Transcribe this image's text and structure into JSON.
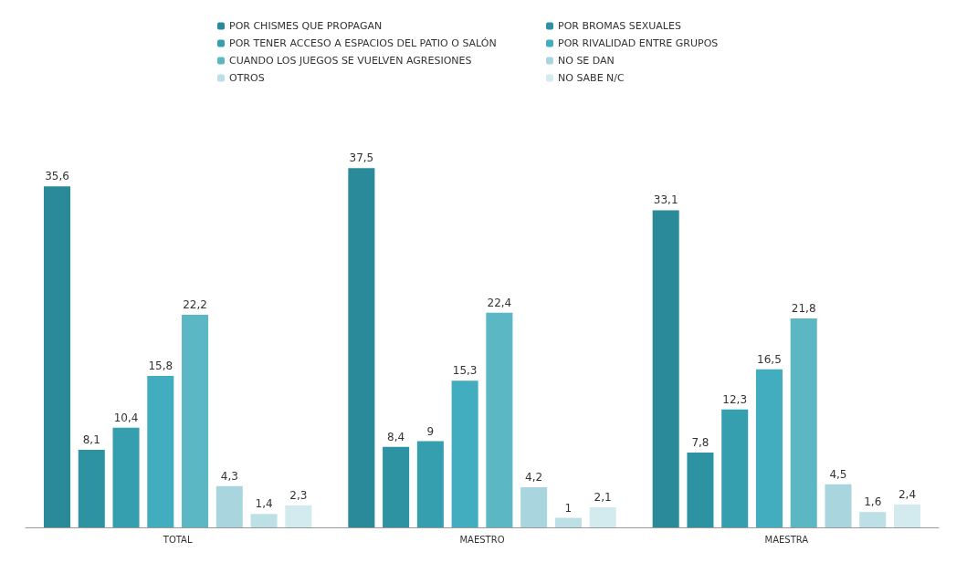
{
  "chart_data": {
    "type": "bar",
    "categories": [
      "TOTAL",
      "MAESTRO",
      "MAESTRA"
    ],
    "tick_labels": "x",
    "legend": "top",
    "series": [
      {
        "name": "POR CHISMES QUE PROPAGAN",
        "color": "#2a8a9a",
        "values": [
          35.6,
          37.5,
          33.1
        ],
        "value_labels": [
          "35,6",
          "37,5",
          "33,1"
        ]
      },
      {
        "name": "POR BROMAS SEXUALES",
        "color": "#2d93a3",
        "values": [
          8.1,
          8.4,
          7.8
        ],
        "value_labels": [
          "8,1",
          "8,4",
          "7,8"
        ]
      },
      {
        "name": "POR TENER ACCESO A ESPACIOS DEL PATIO O SALÓN",
        "color": "#359fb0",
        "values": [
          10.4,
          9,
          12.3
        ],
        "value_labels": [
          "10,4",
          "9",
          "12,3"
        ]
      },
      {
        "name": "POR RIVALIDAD ENTRE GRUPOS",
        "color": "#43adc0",
        "values": [
          15.8,
          15.3,
          16.5
        ],
        "value_labels": [
          "15,8",
          "15,3",
          "16,5"
        ]
      },
      {
        "name": "CUANDO LOS JUEGOS SE VUELVEN AGRESIONES",
        "color": "#5bb7c4",
        "values": [
          22.2,
          22.4,
          21.8
        ],
        "value_labels": [
          "22,2",
          "22,4",
          "21,8"
        ]
      },
      {
        "name": "NO SE DAN",
        "color": "#a9d6de",
        "values": [
          4.3,
          4.2,
          4.5
        ],
        "value_labels": [
          "4,3",
          "4,2",
          "4,5"
        ]
      },
      {
        "name": "OTROS",
        "color": "#bde0e6",
        "values": [
          1.4,
          1,
          1.6
        ],
        "value_labels": [
          "1,4",
          "1",
          "1,6"
        ]
      },
      {
        "name": "NO SABE N/C",
        "color": "#d3eaee",
        "values": [
          2.3,
          2.1,
          2.4
        ],
        "value_labels": [
          "2,3",
          "2,1",
          "2,4"
        ]
      }
    ]
  }
}
